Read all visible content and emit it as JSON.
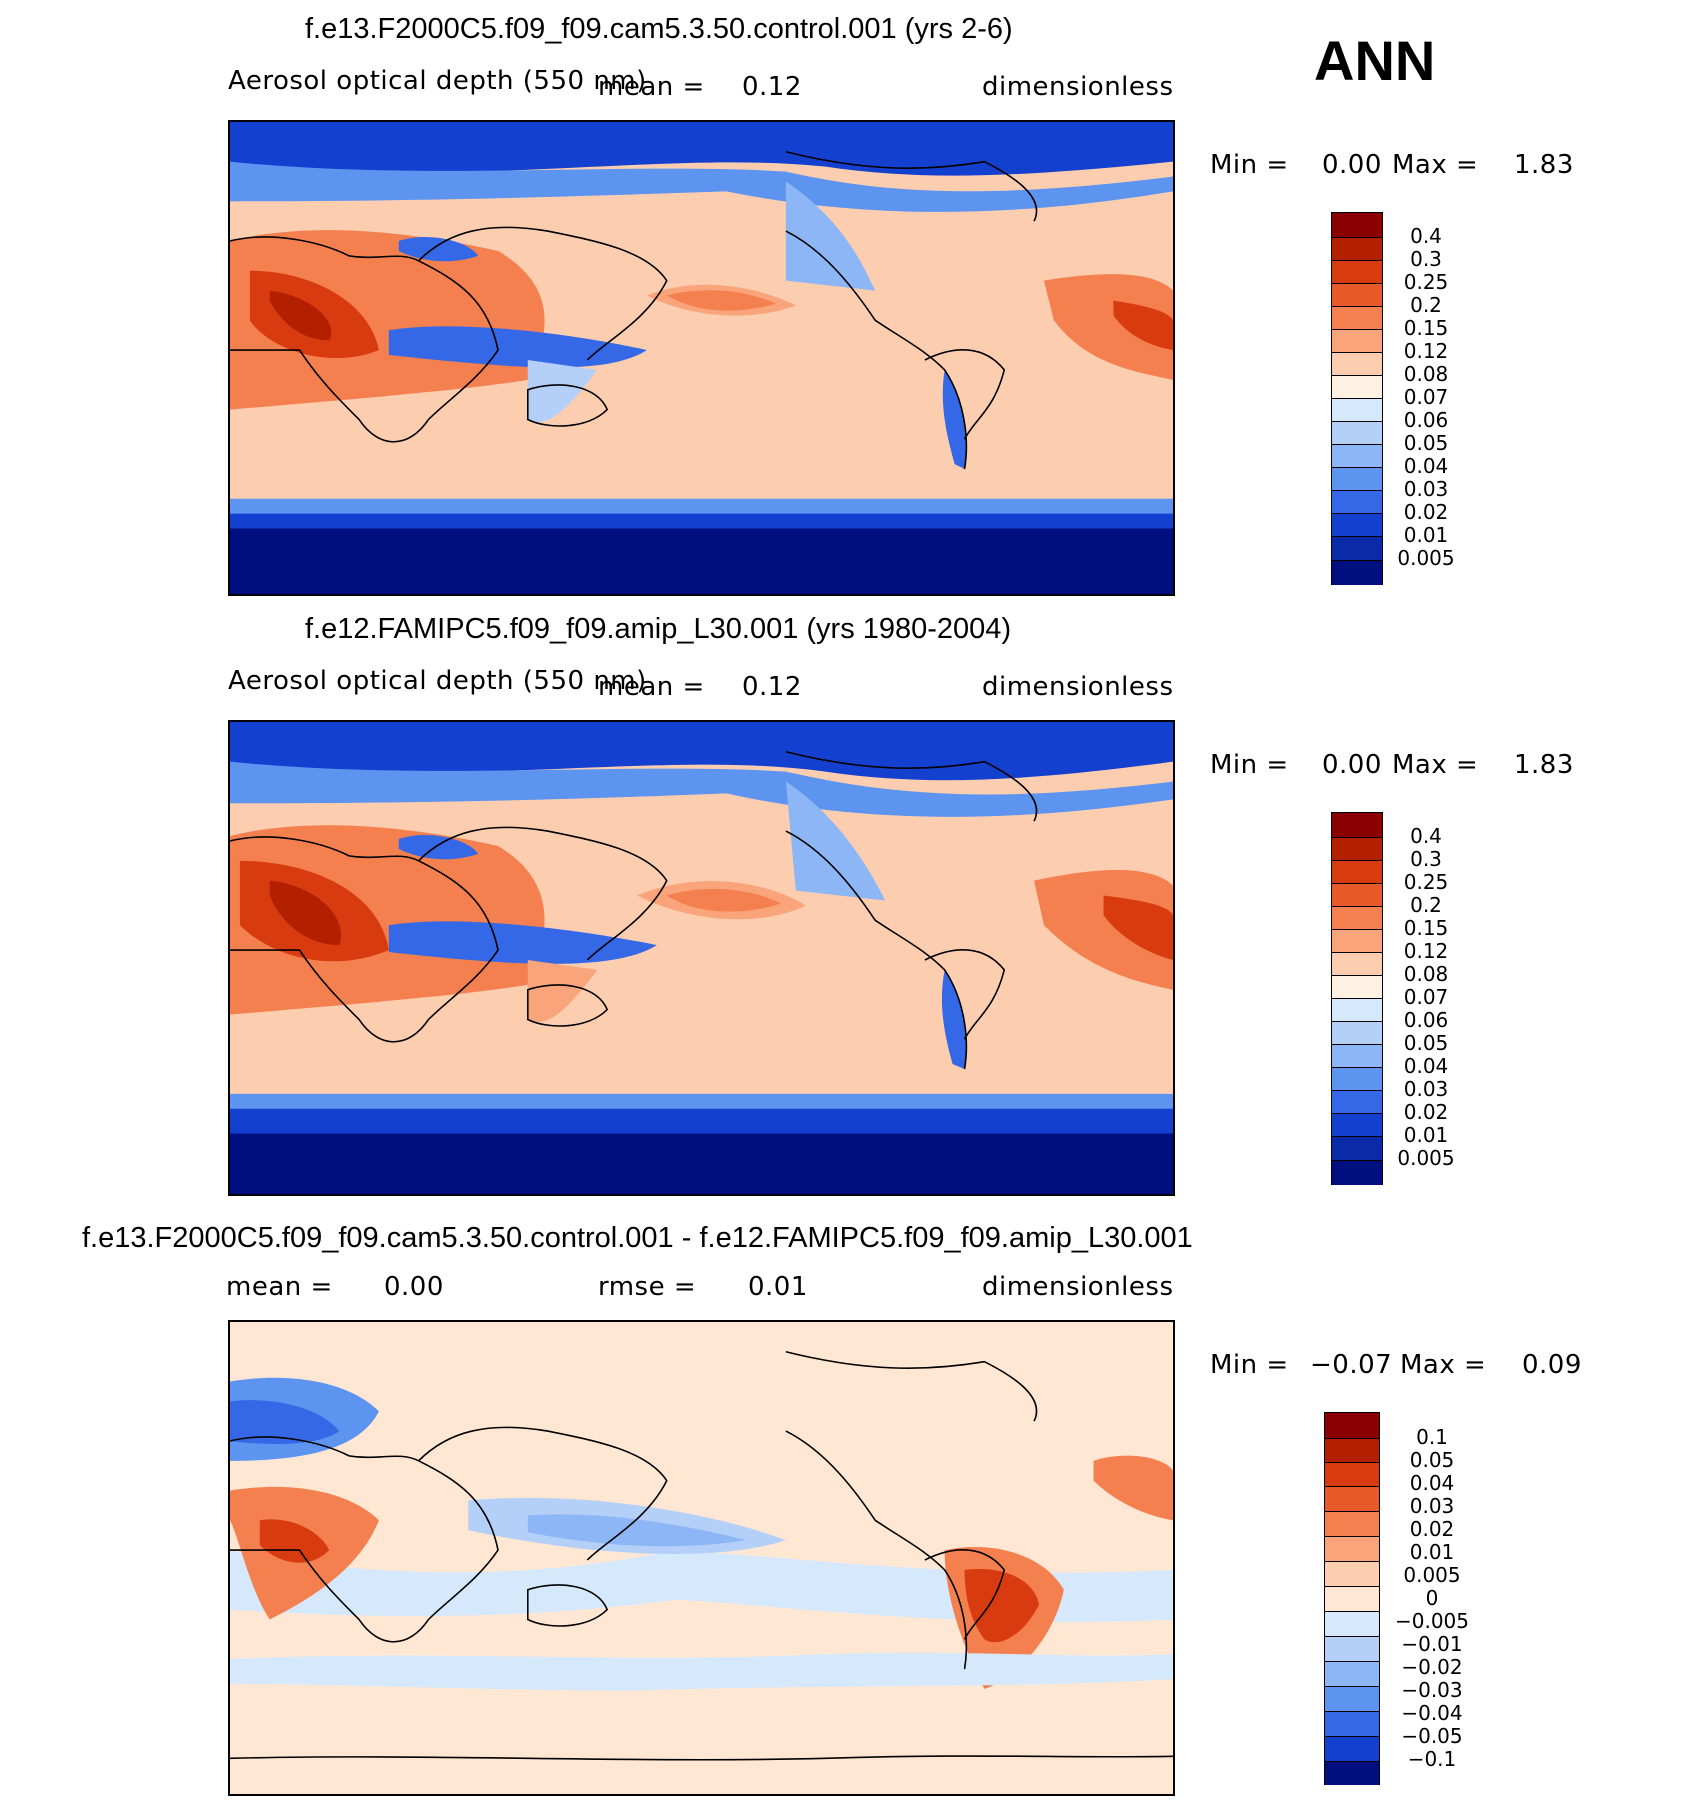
{
  "season": "ANN",
  "panels": [
    {
      "title": "f.e13.F2000C5.f09_f09.cam5.3.50.control.001 (yrs 2-6)",
      "variable": "Aerosol optical depth (550 nm)",
      "stat1": "mean =",
      "stat1_value": "0.12",
      "units": "dimensionless",
      "min_label": "Min =",
      "min_value": "0.00",
      "max_label": "Max =",
      "max_value": "1.83",
      "colorbar": [
        "0.4",
        "0.3",
        "0.25",
        "0.2",
        "0.15",
        "0.12",
        "0.08",
        "0.07",
        "0.06",
        "0.05",
        "0.04",
        "0.03",
        "0.02",
        "0.01",
        "0.005"
      ]
    },
    {
      "title": "f.e12.FAMIPC5.f09_f09.amip_L30.001 (yrs 1980-2004)",
      "variable": "Aerosol optical depth (550 nm)",
      "stat1": "mean =",
      "stat1_value": "0.12",
      "units": "dimensionless",
      "min_label": "Min =",
      "min_value": "0.00",
      "max_label": "Max =",
      "max_value": "1.83",
      "colorbar": [
        "0.4",
        "0.3",
        "0.25",
        "0.2",
        "0.15",
        "0.12",
        "0.08",
        "0.07",
        "0.06",
        "0.05",
        "0.04",
        "0.03",
        "0.02",
        "0.01",
        "0.005"
      ]
    },
    {
      "title": "f.e13.F2000C5.f09_f09.cam5.3.50.control.001 - f.e12.FAMIPC5.f09_f09.amip_L30.001",
      "stat1": "mean =",
      "stat1_value": "0.00",
      "stat2": "rmse =",
      "stat2_value": "0.01",
      "units": "dimensionless",
      "min_label": "Min =",
      "min_value": "−0.07",
      "max_label": "Max =",
      "max_value": "0.09",
      "colorbar": [
        "0.1",
        "0.05",
        "0.04",
        "0.03",
        "0.02",
        "0.01",
        "0.005",
        "0",
        "−0.005",
        "−0.01",
        "−0.02",
        "−0.03",
        "−0.04",
        "−0.05",
        "−0.1"
      ]
    }
  ],
  "colors": {
    "abs_scale": [
      "#8b0000",
      "#b22000",
      "#d83b10",
      "#e85a2a",
      "#f5804f",
      "#f9a47a",
      "#fdcdb0",
      "#fff1e2",
      "#d6e8fb",
      "#b4d0f8",
      "#8cb6f5",
      "#5d94ef",
      "#3468e6",
      "#1440d0",
      "#0a2aa8",
      "#000f80"
    ],
    "diff_scale": [
      "#8b0000",
      "#b22000",
      "#d83b10",
      "#e85a2a",
      "#f5804f",
      "#f9a47a",
      "#fdcdb0",
      "#ffe7d4",
      "#d6e8fb",
      "#b4d0f8",
      "#8cb6f5",
      "#5d94ef",
      "#3468e6",
      "#1440d0",
      "#000f80"
    ]
  }
}
